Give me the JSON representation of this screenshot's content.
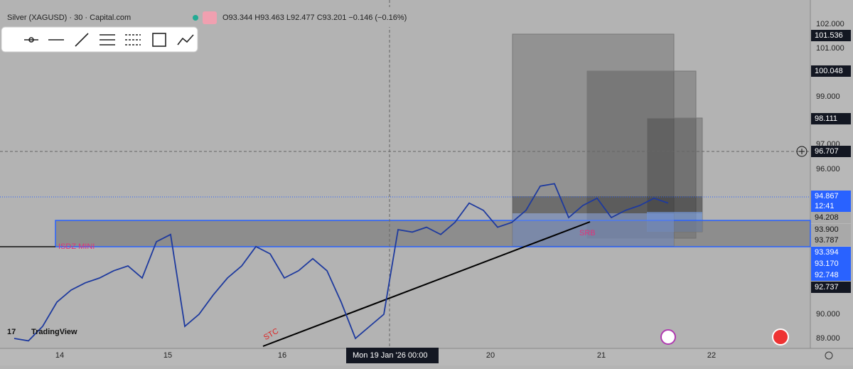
{
  "header": {
    "symbol": "Silver (XAGUSD) · 30 · Capital.com",
    "ohlc": "O93.344 H93.463 L92.477 C93.201 −0.146 (−0.16%)"
  },
  "price_axis": {
    "labels": [
      "102.000",
      "101.000",
      "99.000",
      "97.000",
      "96.000",
      "90.000",
      "89.000"
    ]
  },
  "price_tags": {
    "t1": "101.536",
    "t2": "100.048",
    "t3": "98.111",
    "t4": "96.707",
    "t5": "94.867",
    "t5b": "12:41",
    "t6": "94.208",
    "t7": "93.900",
    "t8": "93.787",
    "t9": "93.394",
    "t10": "93.170",
    "t11": "92.748",
    "t12": "92.737"
  },
  "time_axis": {
    "labels": [
      "14",
      "15",
      "16",
      "20",
      "21",
      "22"
    ],
    "crosshair": "Mon 19 Jan '26   00:00"
  },
  "annotations": {
    "zone": "ISDZ MINI",
    "srb": "SRB",
    "stc": "STC"
  },
  "brand": "TradingView",
  "price": {
    "closes": [
      89.0,
      88.9,
      89.5,
      90.5,
      91.0,
      91.3,
      91.5,
      91.8,
      92.0,
      91.5,
      93.0,
      93.3,
      89.5,
      90.0,
      90.8,
      91.5,
      92.0,
      92.8,
      92.5,
      91.5,
      91.8,
      92.3,
      91.8,
      90.5,
      89.0,
      89.5,
      90.0,
      93.5,
      93.4,
      93.6,
      93.3,
      93.8,
      94.6,
      94.3,
      93.6,
      93.8,
      94.3,
      95.3,
      95.4,
      94.0,
      94.5,
      94.8,
      94.0,
      94.3,
      94.5,
      94.8,
      94.6
    ]
  }
}
